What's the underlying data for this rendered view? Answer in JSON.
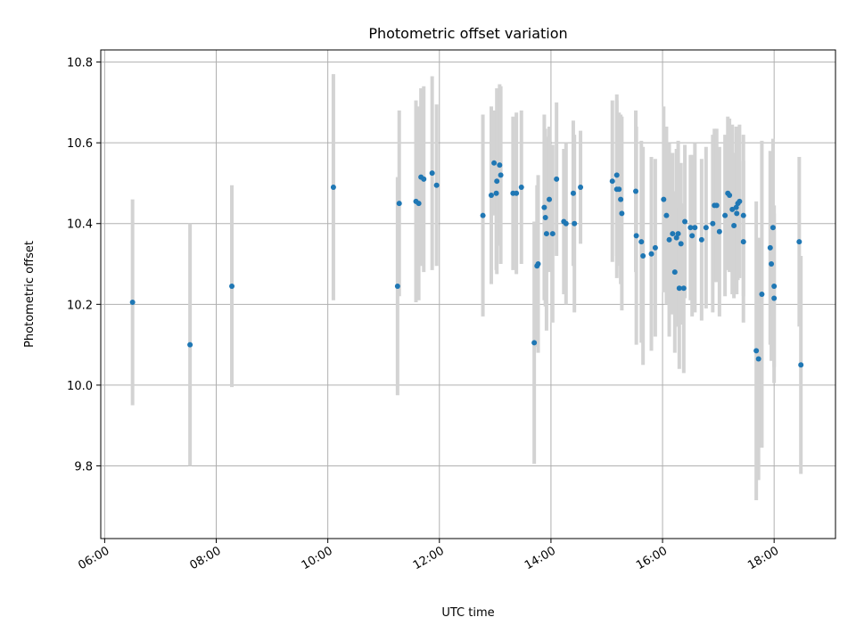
{
  "chart_data": {
    "type": "scatter",
    "title": "Photometric offset variation",
    "xlabel": "UTC time",
    "ylabel": "Photometric offset",
    "x_unit": "hours",
    "xlim": [
      5.93,
      19.1
    ],
    "ylim": [
      9.62,
      10.83
    ],
    "grid": true,
    "marker_color": "#1f77b4",
    "errorbar_color": "#d3d3d3",
    "x_ticks": [
      {
        "value": 6,
        "label": "06:00"
      },
      {
        "value": 8,
        "label": "08:00"
      },
      {
        "value": 10,
        "label": "10:00"
      },
      {
        "value": 12,
        "label": "12:00"
      },
      {
        "value": 14,
        "label": "14:00"
      },
      {
        "value": 16,
        "label": "16:00"
      },
      {
        "value": 18,
        "label": "18:00"
      }
    ],
    "y_ticks": [
      {
        "value": 9.8,
        "label": "9.8"
      },
      {
        "value": 10.0,
        "label": "10.0"
      },
      {
        "value": 10.2,
        "label": "10.2"
      },
      {
        "value": 10.4,
        "label": "10.4"
      },
      {
        "value": 10.6,
        "label": "10.6"
      },
      {
        "value": 10.8,
        "label": "10.8"
      }
    ],
    "points": [
      [
        6.5,
        10.205,
        0.255
      ],
      [
        7.53,
        10.1,
        0.3
      ],
      [
        8.28,
        10.245,
        0.25
      ],
      [
        10.1,
        10.49,
        0.28
      ],
      [
        11.25,
        10.245,
        0.27
      ],
      [
        11.28,
        10.45,
        0.23
      ],
      [
        11.58,
        10.455,
        0.25
      ],
      [
        11.63,
        10.45,
        0.24
      ],
      [
        11.67,
        10.515,
        0.22
      ],
      [
        11.72,
        10.51,
        0.23
      ],
      [
        11.87,
        10.525,
        0.24
      ],
      [
        11.95,
        10.495,
        0.2
      ],
      [
        12.78,
        10.42,
        0.25
      ],
      [
        12.93,
        10.47,
        0.22
      ],
      [
        12.98,
        10.55,
        0.13
      ],
      [
        13.02,
        10.475,
        0.19
      ],
      [
        13.03,
        10.505,
        0.23
      ],
      [
        13.08,
        10.545,
        0.2
      ],
      [
        13.1,
        10.52,
        0.22
      ],
      [
        13.32,
        10.475,
        0.19
      ],
      [
        13.38,
        10.475,
        0.2
      ],
      [
        13.47,
        10.49,
        0.19
      ],
      [
        13.7,
        10.105,
        0.3
      ],
      [
        13.75,
        10.295,
        0.2
      ],
      [
        13.77,
        10.3,
        0.22
      ],
      [
        13.88,
        10.44,
        0.23
      ],
      [
        13.9,
        10.415,
        0.22
      ],
      [
        13.92,
        10.375,
        0.24
      ],
      [
        13.97,
        10.46,
        0.18
      ],
      [
        14.03,
        10.375,
        0.22
      ],
      [
        14.1,
        10.51,
        0.19
      ],
      [
        14.23,
        10.405,
        0.18
      ],
      [
        14.27,
        10.4,
        0.2
      ],
      [
        14.4,
        10.475,
        0.18
      ],
      [
        14.42,
        10.4,
        0.22
      ],
      [
        14.53,
        10.49,
        0.14
      ],
      [
        15.1,
        10.505,
        0.2
      ],
      [
        15.18,
        10.52,
        0.2
      ],
      [
        15.18,
        10.485,
        0.22
      ],
      [
        15.22,
        10.485,
        0.19
      ],
      [
        15.25,
        10.46,
        0.21
      ],
      [
        15.27,
        10.425,
        0.24
      ],
      [
        15.52,
        10.48,
        0.2
      ],
      [
        15.53,
        10.37,
        0.27
      ],
      [
        15.62,
        10.355,
        0.25
      ],
      [
        15.65,
        10.32,
        0.27
      ],
      [
        15.8,
        10.325,
        0.24
      ],
      [
        15.87,
        10.34,
        0.22
      ],
      [
        16.02,
        10.46,
        0.23
      ],
      [
        16.07,
        10.42,
        0.22
      ],
      [
        16.12,
        10.36,
        0.24
      ],
      [
        16.18,
        10.375,
        0.2
      ],
      [
        16.22,
        10.28,
        0.2
      ],
      [
        16.25,
        10.365,
        0.22
      ],
      [
        16.28,
        10.375,
        0.23
      ],
      [
        16.3,
        10.24,
        0.2
      ],
      [
        16.33,
        10.35,
        0.2
      ],
      [
        16.38,
        10.24,
        0.21
      ],
      [
        16.4,
        10.405,
        0.19
      ],
      [
        16.5,
        10.39,
        0.18
      ],
      [
        16.53,
        10.37,
        0.2
      ],
      [
        16.58,
        10.39,
        0.21
      ],
      [
        16.7,
        10.36,
        0.2
      ],
      [
        16.78,
        10.39,
        0.2
      ],
      [
        16.9,
        10.4,
        0.22
      ],
      [
        16.93,
        10.445,
        0.19
      ],
      [
        16.97,
        10.445,
        0.19
      ],
      [
        17.02,
        10.38,
        0.21
      ],
      [
        17.12,
        10.42,
        0.2
      ],
      [
        17.17,
        10.475,
        0.19
      ],
      [
        17.2,
        10.47,
        0.19
      ],
      [
        17.25,
        10.435,
        0.21
      ],
      [
        17.28,
        10.395,
        0.18
      ],
      [
        17.32,
        10.44,
        0.2
      ],
      [
        17.33,
        10.425,
        0.2
      ],
      [
        17.35,
        10.45,
        0.19
      ],
      [
        17.38,
        10.455,
        0.19
      ],
      [
        17.45,
        10.42,
        0.2
      ],
      [
        17.45,
        10.355,
        0.2
      ],
      [
        17.68,
        10.085,
        0.37
      ],
      [
        17.72,
        10.065,
        0.3
      ],
      [
        17.78,
        10.225,
        0.38
      ],
      [
        17.93,
        10.34,
        0.24
      ],
      [
        17.95,
        10.3,
        0.24
      ],
      [
        17.98,
        10.39,
        0.22
      ],
      [
        18.0,
        10.245,
        0.2
      ],
      [
        18.0,
        10.215,
        0.21
      ],
      [
        18.45,
        10.355,
        0.21
      ],
      [
        18.48,
        10.05,
        0.27
      ]
    ]
  }
}
